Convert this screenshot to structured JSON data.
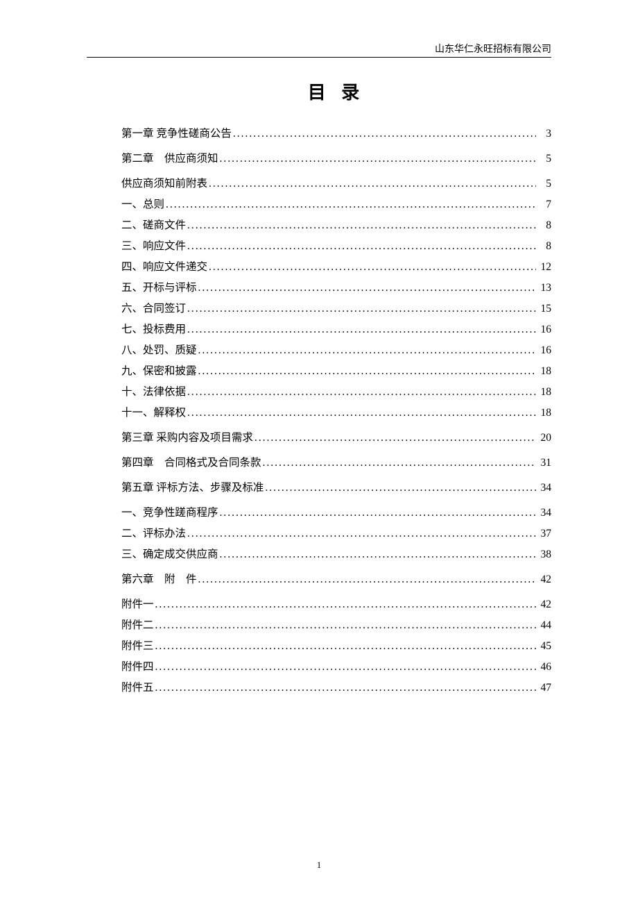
{
  "header": {
    "company": "山东华仁永旺招标有限公司"
  },
  "title": "目 录",
  "toc": {
    "entries": [
      {
        "label": "第一章 竞争性磋商公告",
        "page": "3",
        "level": 1
      },
      {
        "label": "第二章　供应商须知",
        "page": "5",
        "level": 1
      },
      {
        "label": "供应商须知前附表",
        "page": "5",
        "level": 2
      },
      {
        "label": "一、总则",
        "page": "7",
        "level": 2
      },
      {
        "label": "二、磋商文件",
        "page": "8",
        "level": 2
      },
      {
        "label": "三、响应文件",
        "page": "8",
        "level": 2
      },
      {
        "label": "四、响应文件递交",
        "page": "12",
        "level": 2
      },
      {
        "label": "五、开标与评标",
        "page": "13",
        "level": 2
      },
      {
        "label": "六、合同签订",
        "page": "15",
        "level": 2
      },
      {
        "label": "七、投标费用",
        "page": "16",
        "level": 2
      },
      {
        "label": "八、处罚、质疑",
        "page": "16",
        "level": 2
      },
      {
        "label": "九、保密和披露",
        "page": "18",
        "level": 2
      },
      {
        "label": "十、法律依据",
        "page": "18",
        "level": 2
      },
      {
        "label": "十一、解释权",
        "page": "18",
        "level": 2
      },
      {
        "label": "第三章 采购内容及项目需求",
        "page": "20",
        "level": 1
      },
      {
        "label": "第四章　合同格式及合同条款",
        "page": "31",
        "level": 1
      },
      {
        "label": "第五章 评标方法、步骤及标准",
        "page": "34",
        "level": 1
      },
      {
        "label": "一、竞争性蹉商程序",
        "page": "34",
        "level": 2
      },
      {
        "label": "二、评标办法",
        "page": "37",
        "level": 2
      },
      {
        "label": "三、确定成交供应商",
        "page": "38",
        "level": 2
      },
      {
        "label": "第六章　附　件",
        "page": "42",
        "level": 1
      },
      {
        "label": "附件一",
        "page": "42",
        "level": 2
      },
      {
        "label": "附件二",
        "page": "44",
        "level": 2
      },
      {
        "label": "附件三",
        "page": "45",
        "level": 2
      },
      {
        "label": "附件四",
        "page": "46",
        "level": 2
      },
      {
        "label": "附件五",
        "page": "47",
        "level": 2
      }
    ]
  },
  "pageNumber": "1",
  "styling": {
    "background_color": "#ffffff",
    "text_color": "#000000",
    "title_fontsize": 26,
    "body_fontsize": 15.5,
    "header_fontsize": 14,
    "pagenum_fontsize": 13,
    "font_family": "SimSun"
  }
}
